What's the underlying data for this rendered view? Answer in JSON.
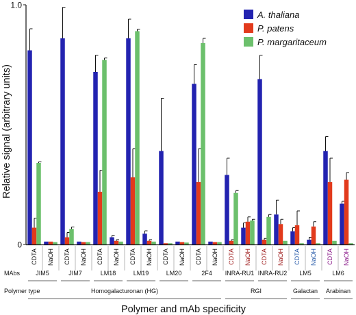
{
  "chart_data": {
    "type": "bar",
    "ylabel": "Relative signal (arbitrary units)",
    "xlabel": "Polymer and mAb specificity",
    "ylim": [
      0,
      1.0
    ],
    "yticks": [
      "0",
      "1.0"
    ],
    "grid": false,
    "legend_position": "top-right",
    "categories": [
      {
        "condition": "CDTA",
        "mab": "JIM5"
      },
      {
        "condition": "NaOH",
        "mab": "JIM5"
      },
      {
        "condition": "CDTA",
        "mab": "JIM7"
      },
      {
        "condition": "NaOH",
        "mab": "JIM7"
      },
      {
        "condition": "CDTA",
        "mab": "LM18"
      },
      {
        "condition": "NaOH",
        "mab": "LM18"
      },
      {
        "condition": "CDTA",
        "mab": "LM19"
      },
      {
        "condition": "NaOH",
        "mab": "LM19"
      },
      {
        "condition": "CDTA",
        "mab": "LM20"
      },
      {
        "condition": "NaOH",
        "mab": "LM20"
      },
      {
        "condition": "CDTA",
        "mab": "2F4"
      },
      {
        "condition": "NaOH",
        "mab": "2F4"
      },
      {
        "condition": "CDTA",
        "mab": "INRA-RU1"
      },
      {
        "condition": "NaOH",
        "mab": "INRA-RU1"
      },
      {
        "condition": "CDTA",
        "mab": "INRA-RU2"
      },
      {
        "condition": "NaOH",
        "mab": "INRA-RU2"
      },
      {
        "condition": "CDTA",
        "mab": "LM5"
      },
      {
        "condition": "NaOH",
        "mab": "LM5"
      },
      {
        "condition": "CDTA",
        "mab": "LM6"
      },
      {
        "condition": "NaOH",
        "mab": "LM6"
      }
    ],
    "series": [
      {
        "name": "A. thaliana",
        "color": "#2323b0",
        "values": [
          0.81,
          0.012,
          0.86,
          0.012,
          0.72,
          0.03,
          0.86,
          0.045,
          0.39,
          0.012,
          0.67,
          0.012,
          0.29,
          0.07,
          0.69,
          0.125,
          0.055,
          0.02,
          0.39,
          0.17
        ],
        "errors": [
          0.09,
          0.002,
          0.13,
          0.002,
          0.07,
          0.008,
          0.08,
          0.012,
          0.22,
          0.002,
          0.08,
          0.002,
          0.07,
          0.02,
          0.1,
          0.06,
          0.015,
          0.01,
          0.06,
          0.01
        ]
      },
      {
        "name": "P. patens",
        "color": "#e23a1c",
        "values": [
          0.07,
          0.012,
          0.03,
          0.01,
          0.22,
          0.015,
          0.28,
          0.015,
          0.005,
          0.01,
          0.26,
          0.01,
          0.015,
          0.095,
          0.02,
          0.085,
          0.08,
          0.075,
          0.26,
          0.27
        ],
        "errors": [
          0.04,
          0.002,
          0.02,
          0.002,
          0.09,
          0.005,
          0.12,
          0.005,
          0.002,
          0.002,
          0.14,
          0.002,
          0.005,
          0.02,
          0.005,
          0.02,
          0.06,
          0.02,
          0.1,
          0.03
        ]
      },
      {
        "name": "P. margaritaceum",
        "color": "#6cc06c",
        "values": [
          0.34,
          0.01,
          0.065,
          0.01,
          0.77,
          0.012,
          0.89,
          0.012,
          0.005,
          0.008,
          0.84,
          0.01,
          0.215,
          0.1,
          0.115,
          0.015,
          0.005,
          0.005,
          0.015,
          0.005
        ],
        "errors": [
          0.005,
          0.001,
          0.008,
          0.001,
          0.008,
          0.001,
          0.008,
          0.001,
          0.001,
          0.001,
          0.02,
          0.001,
          0.01,
          0.005,
          0.01,
          0.001,
          0.001,
          0.001,
          0.001,
          0.001
        ]
      }
    ],
    "mabs": [
      {
        "label": "JIM5",
        "color": "#111111"
      },
      {
        "label": "JIM7",
        "color": "#111111"
      },
      {
        "label": "LM18",
        "color": "#111111"
      },
      {
        "label": "LM19",
        "color": "#111111"
      },
      {
        "label": "LM20",
        "color": "#111111"
      },
      {
        "label": "2F4",
        "color": "#111111"
      },
      {
        "label": "INRA-RU1",
        "color": "#a02020"
      },
      {
        "label": "INRA-RU2",
        "color": "#a02020"
      },
      {
        "label": "LM5",
        "color": "#2a5caa"
      },
      {
        "label": "LM6",
        "color": "#8a1a8a"
      }
    ],
    "polymer_types": [
      {
        "label": "Homogalacturonan (HG)",
        "color": "#111111",
        "mab_count": 6
      },
      {
        "label": "RGI",
        "color": "#a02020",
        "mab_count": 2
      },
      {
        "label": "Galactan",
        "color": "#2a5caa",
        "mab_count": 1
      },
      {
        "label": "Arabinan",
        "color": "#8a1a8a",
        "mab_count": 1
      }
    ],
    "row_labels": {
      "mabs": "MAbs",
      "polymer_type": "Polymer type"
    }
  }
}
